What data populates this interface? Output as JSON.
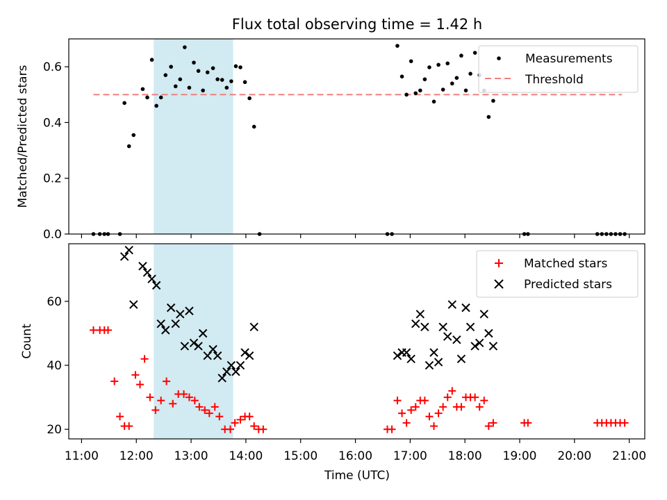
{
  "title": "Flux total observing time = 1.42 h",
  "colors": {
    "measure": "#000000",
    "threshold": "#f08080",
    "matched": "#ff0000",
    "predicted": "#000000",
    "shade": "#add8e6"
  },
  "chart_data": [
    {
      "type": "scatter",
      "ylabel": "Matched/Predicted stars",
      "ylim": [
        0,
        0.7
      ],
      "yticks": [
        "0.0",
        "0.2",
        "0.4",
        "0.6"
      ],
      "ytick_values": [
        0,
        0.2,
        0.4,
        0.6
      ],
      "xlim": [
        "10:46",
        "21:17"
      ],
      "shaded_span": [
        "12:19",
        "13:46"
      ],
      "threshold": {
        "y": 0.5,
        "x_range": [
          "11:13",
          "20:52"
        ]
      },
      "legend_position": "upper right",
      "legend": [
        "Measurements",
        "Threshold"
      ],
      "series": [
        {
          "name": "Measurements",
          "points": [
            [
              "11:13",
              0
            ],
            [
              "11:20",
              0
            ],
            [
              "11:25",
              0
            ],
            [
              "11:29",
              0
            ],
            [
              "11:42",
              0
            ],
            [
              "11:47",
              0.47
            ],
            [
              "11:52",
              0.315
            ],
            [
              "11:57",
              0.355
            ],
            [
              "12:07",
              0.52
            ],
            [
              "12:12",
              0.49
            ],
            [
              "12:17",
              0.625
            ],
            [
              "12:22",
              0.46
            ],
            [
              "12:27",
              0.49
            ],
            [
              "12:32",
              0.57
            ],
            [
              "12:38",
              0.6
            ],
            [
              "12:43",
              0.53
            ],
            [
              "12:48",
              0.555
            ],
            [
              "12:53",
              0.67
            ],
            [
              "12:58",
              0.525
            ],
            [
              "13:03",
              0.615
            ],
            [
              "13:08",
              0.585
            ],
            [
              "13:13",
              0.515
            ],
            [
              "13:18",
              0.58
            ],
            [
              "13:24",
              0.595
            ],
            [
              "13:29",
              0.555
            ],
            [
              "13:34",
              0.553
            ],
            [
              "13:39",
              0.525
            ],
            [
              "13:44",
              0.548
            ],
            [
              "13:49",
              0.602
            ],
            [
              "13:54",
              0.598
            ],
            [
              "13:59",
              0.545
            ],
            [
              "14:04",
              0.487
            ],
            [
              "14:09",
              0.385
            ],
            [
              "14:15",
              0
            ],
            [
              "16:35",
              0
            ],
            [
              "16:40",
              0
            ],
            [
              "16:46",
              0.675
            ],
            [
              "16:51",
              0.565
            ],
            [
              "16:56",
              0.5
            ],
            [
              "17:01",
              0.62
            ],
            [
              "17:06",
              0.505
            ],
            [
              "17:11",
              0.515
            ],
            [
              "17:16",
              0.555
            ],
            [
              "17:21",
              0.598
            ],
            [
              "17:26",
              0.475
            ],
            [
              "17:31",
              0.607
            ],
            [
              "17:36",
              0.518
            ],
            [
              "17:41",
              0.612
            ],
            [
              "17:46",
              0.54
            ],
            [
              "17:51",
              0.56
            ],
            [
              "17:56",
              0.64
            ],
            [
              "18:01",
              0.515
            ],
            [
              "18:06",
              0.575
            ],
            [
              "18:11",
              0.65
            ],
            [
              "18:16",
              0.57
            ],
            [
              "18:21",
              0.515
            ],
            [
              "18:26",
              0.42
            ],
            [
              "18:31",
              0.478
            ],
            [
              "19:05",
              0
            ],
            [
              "19:09",
              0
            ],
            [
              "20:25",
              0
            ],
            [
              "20:30",
              0
            ],
            [
              "20:35",
              0
            ],
            [
              "20:40",
              0
            ],
            [
              "20:45",
              0
            ],
            [
              "20:50",
              0
            ],
            [
              "20:55",
              0
            ]
          ]
        }
      ]
    },
    {
      "type": "scatter",
      "ylabel": "Count",
      "xlabel": "Time (UTC)",
      "ylim": [
        17,
        78
      ],
      "yticks": [
        "20",
        "40",
        "60"
      ],
      "ytick_values": [
        20,
        40,
        60
      ],
      "xlim": [
        "10:46",
        "21:17"
      ],
      "xticks": [
        "11:00",
        "12:00",
        "13:00",
        "14:00",
        "15:00",
        "16:00",
        "17:00",
        "18:00",
        "19:00",
        "20:00",
        "21:00"
      ],
      "shaded_span": [
        "12:19",
        "13:46"
      ],
      "legend_position": "upper right",
      "legend": [
        "Matched stars",
        "Predicted stars"
      ],
      "series": [
        {
          "name": "Matched stars",
          "marker": "+",
          "points": [
            [
              "11:13",
              51
            ],
            [
              "11:20",
              51
            ],
            [
              "11:25",
              51
            ],
            [
              "11:29",
              51
            ],
            [
              "11:36",
              35
            ],
            [
              "11:42",
              24
            ],
            [
              "11:47",
              21
            ],
            [
              "11:52",
              21
            ],
            [
              "11:59",
              37
            ],
            [
              "12:04",
              34
            ],
            [
              "12:09",
              42
            ],
            [
              "12:15",
              30
            ],
            [
              "12:21",
              26
            ],
            [
              "12:27",
              29
            ],
            [
              "12:33",
              35
            ],
            [
              "12:40",
              28
            ],
            [
              "12:46",
              31
            ],
            [
              "12:52",
              31
            ],
            [
              "12:58",
              30
            ],
            [
              "13:04",
              29
            ],
            [
              "13:09",
              27
            ],
            [
              "13:15",
              26
            ],
            [
              "13:20",
              25
            ],
            [
              "13:26",
              27
            ],
            [
              "13:31",
              24
            ],
            [
              "13:37",
              20
            ],
            [
              "13:43",
              20
            ],
            [
              "13:48",
              22
            ],
            [
              "13:54",
              23
            ],
            [
              "13:59",
              24
            ],
            [
              "14:04",
              24
            ],
            [
              "14:09",
              21
            ],
            [
              "14:14",
              20
            ],
            [
              "14:19",
              20
            ],
            [
              "16:35",
              20
            ],
            [
              "16:40",
              20
            ],
            [
              "16:46",
              29
            ],
            [
              "16:51",
              25
            ],
            [
              "16:56",
              22
            ],
            [
              "17:01",
              26
            ],
            [
              "17:06",
              27
            ],
            [
              "17:11",
              29
            ],
            [
              "17:16",
              29
            ],
            [
              "17:21",
              24
            ],
            [
              "17:26",
              21
            ],
            [
              "17:31",
              25
            ],
            [
              "17:36",
              27
            ],
            [
              "17:41",
              30
            ],
            [
              "17:46",
              32
            ],
            [
              "17:51",
              27
            ],
            [
              "17:56",
              27
            ],
            [
              "18:01",
              30
            ],
            [
              "18:06",
              30
            ],
            [
              "18:11",
              30
            ],
            [
              "18:16",
              27
            ],
            [
              "18:21",
              29
            ],
            [
              "18:26",
              21
            ],
            [
              "18:31",
              22
            ],
            [
              "19:05",
              22
            ],
            [
              "19:09",
              22
            ],
            [
              "20:25",
              22
            ],
            [
              "20:30",
              22
            ],
            [
              "20:35",
              22
            ],
            [
              "20:40",
              22
            ],
            [
              "20:45",
              22
            ],
            [
              "20:50",
              22
            ],
            [
              "20:55",
              22
            ]
          ]
        },
        {
          "name": "Predicted stars",
          "marker": "x",
          "points": [
            [
              "11:47",
              74
            ],
            [
              "11:52",
              76
            ],
            [
              "11:57",
              59
            ],
            [
              "12:07",
              71
            ],
            [
              "12:12",
              69
            ],
            [
              "12:17",
              67
            ],
            [
              "12:22",
              65
            ],
            [
              "12:27",
              53
            ],
            [
              "12:32",
              51
            ],
            [
              "12:38",
              58
            ],
            [
              "12:43",
              53
            ],
            [
              "12:48",
              56
            ],
            [
              "12:53",
              46
            ],
            [
              "12:58",
              57
            ],
            [
              "13:03",
              47
            ],
            [
              "13:08",
              46
            ],
            [
              "13:13",
              50
            ],
            [
              "13:18",
              43
            ],
            [
              "13:24",
              45
            ],
            [
              "13:29",
              43
            ],
            [
              "13:34",
              36
            ],
            [
              "13:39",
              38
            ],
            [
              "13:44",
              40
            ],
            [
              "13:49",
              38
            ],
            [
              "13:54",
              40
            ],
            [
              "13:59",
              44
            ],
            [
              "14:04",
              43
            ],
            [
              "14:09",
              52
            ],
            [
              "16:46",
              43
            ],
            [
              "16:51",
              44
            ],
            [
              "16:56",
              44
            ],
            [
              "17:01",
              42
            ],
            [
              "17:06",
              53
            ],
            [
              "17:11",
              56
            ],
            [
              "17:16",
              52
            ],
            [
              "17:21",
              40
            ],
            [
              "17:26",
              44
            ],
            [
              "17:31",
              41
            ],
            [
              "17:36",
              52
            ],
            [
              "17:41",
              49
            ],
            [
              "17:46",
              59
            ],
            [
              "17:51",
              48
            ],
            [
              "17:56",
              42
            ],
            [
              "18:01",
              58
            ],
            [
              "18:06",
              52
            ],
            [
              "18:11",
              46
            ],
            [
              "18:16",
              47
            ],
            [
              "18:21",
              56
            ],
            [
              "18:26",
              50
            ],
            [
              "18:31",
              46
            ]
          ]
        }
      ]
    }
  ]
}
